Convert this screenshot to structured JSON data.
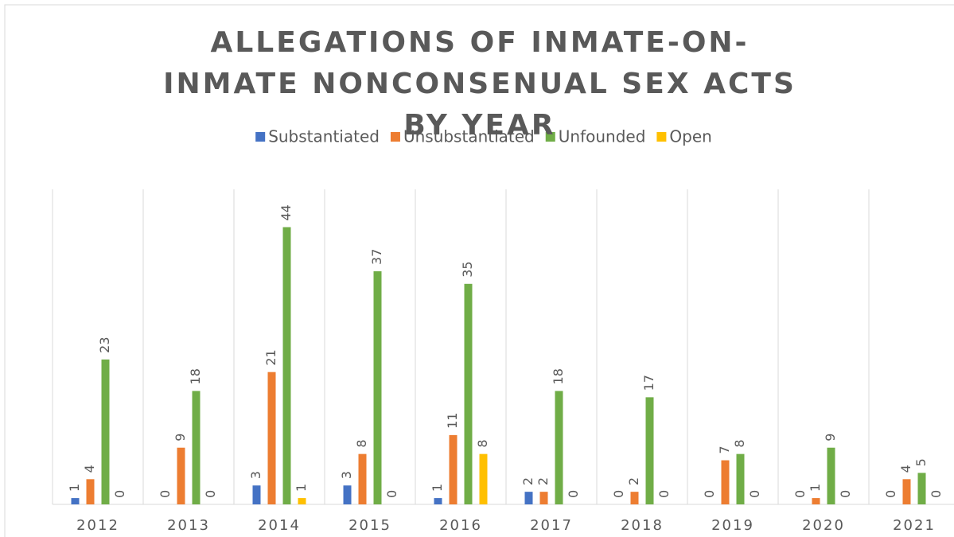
{
  "chart_data": {
    "type": "bar",
    "title": "ALLEGATIONS OF INMATE-ON-INMATE NONCONSENUAL SEX ACTS BY YEAR",
    "categories": [
      "2012",
      "2013",
      "2014",
      "2015",
      "2016",
      "2017",
      "2018",
      "2019",
      "2020",
      "2021"
    ],
    "series": [
      {
        "name": "Substantiated",
        "color": "#4472c4",
        "values": [
          1,
          0,
          3,
          3,
          1,
          2,
          0,
          0,
          0,
          0
        ]
      },
      {
        "name": "Unsubstantiated",
        "color": "#ed7d31",
        "values": [
          4,
          9,
          21,
          8,
          11,
          2,
          2,
          7,
          1,
          4
        ]
      },
      {
        "name": "Unfounded",
        "color": "#70ad47",
        "values": [
          23,
          18,
          44,
          37,
          35,
          18,
          17,
          8,
          9,
          5
        ]
      },
      {
        "name": "Open",
        "color": "#ffc000",
        "values": [
          0,
          0,
          1,
          0,
          8,
          0,
          0,
          0,
          0,
          0
        ]
      }
    ],
    "ylim": [
      0,
      50
    ],
    "legend": "top"
  }
}
